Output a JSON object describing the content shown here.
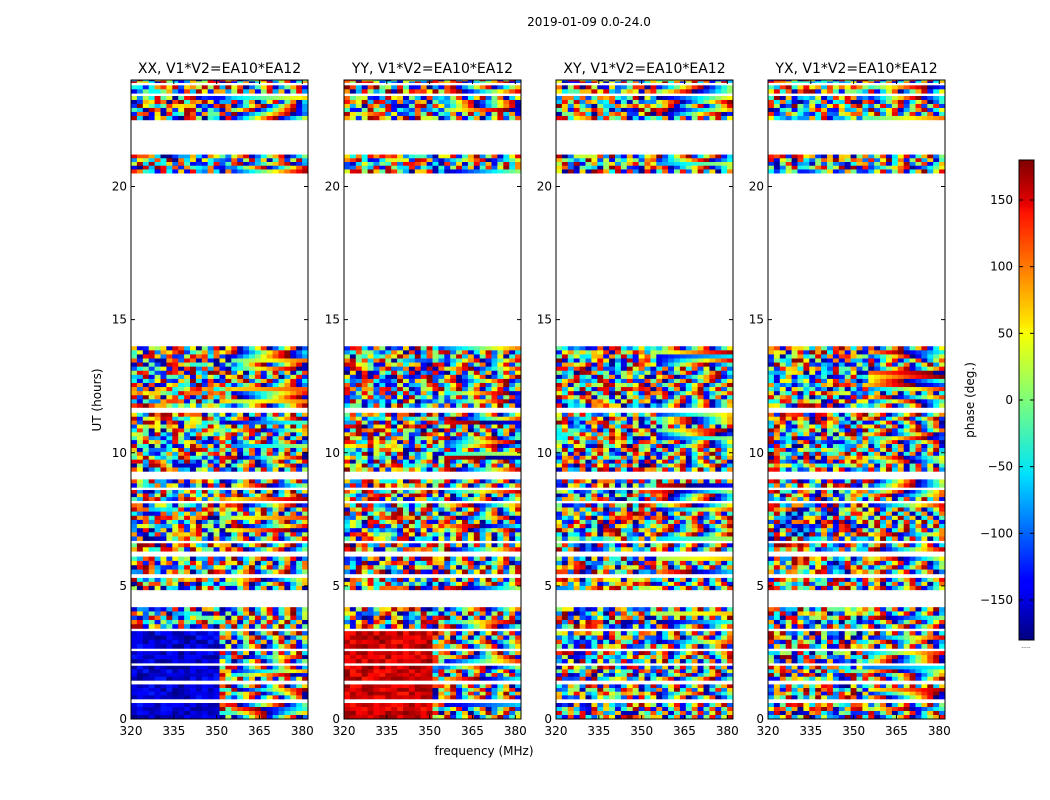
{
  "figure": {
    "suptitle": "2019-01-09 0.0-24.0"
  },
  "chart_data": {
    "type": "heatmap",
    "title": "2019-01-09 0.0-24.0",
    "xlabel": "frequency (MHz)",
    "ylabel": "UT (hours)",
    "xlim": [
      320,
      382
    ],
    "ylim": [
      0,
      24
    ],
    "x_ticks": [
      "320",
      "335",
      "350",
      "365",
      "380"
    ],
    "y_ticks": [
      "0",
      "5",
      "10",
      "15",
      "20"
    ],
    "panels": [
      {
        "title": "XX, V1*V2=EA10*EA12",
        "polarization": "XX"
      },
      {
        "title": "YY, V1*V2=EA10*EA12",
        "polarization": "YY"
      },
      {
        "title": "XY, V1*V2=EA10*EA12",
        "polarization": "XY"
      },
      {
        "title": "YX, V1*V2=EA10*EA12",
        "polarization": "YX"
      }
    ],
    "data_segments_hours": [
      [
        0.0,
        0.6
      ],
      [
        0.75,
        1.3
      ],
      [
        1.45,
        2.0
      ],
      [
        2.1,
        2.55
      ],
      [
        2.65,
        3.3
      ],
      [
        3.4,
        4.2
      ],
      [
        4.85,
        5.3
      ],
      [
        5.45,
        6.1
      ],
      [
        6.3,
        6.6
      ],
      [
        6.7,
        8.1
      ],
      [
        8.2,
        8.6
      ],
      [
        8.7,
        9.0
      ],
      [
        9.3,
        11.5
      ],
      [
        11.7,
        14.0
      ],
      [
        20.5,
        21.2
      ],
      [
        22.5,
        23.4
      ],
      [
        23.5,
        23.8
      ],
      [
        23.9,
        24.0
      ]
    ],
    "colorbar": {
      "label": "phase (deg.)",
      "range": [
        -180,
        180
      ],
      "ticks": [
        "150",
        "100",
        "50",
        "0",
        "−50",
        "−100",
        "−150"
      ],
      "colormap": "jet",
      "footnote": "....."
    }
  }
}
